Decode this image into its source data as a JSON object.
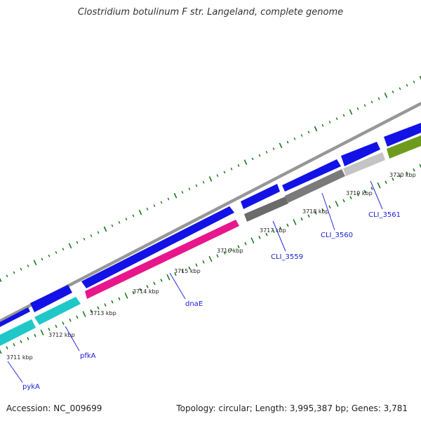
{
  "title": "Clostridium botulinum F str. Langeland, complete genome",
  "footer": {
    "accession": "Accession: NC_009699",
    "summary": "Topology: circular; Length: 3,995,387 bp; Genes: 3,781"
  },
  "colors": {
    "backbone": "#8c8c8c",
    "outer_track_features": "#1212e6",
    "tick": "#117711",
    "dnaE": "#e8168c",
    "pfkA_pykA": "#1fc8c8",
    "CLI_3559": "#6b6b6b",
    "CLI_3560": "#7a7a7a",
    "CLI_3561": "#c4c4c4",
    "next_feature": "#6e9a1e",
    "label_text": "#1a1ad6"
  },
  "kbp_labels": [
    "3711 kbp",
    "3712 kbp",
    "3713 kbp",
    "3714 kbp",
    "3715 kbp",
    "3716 kbp",
    "3717 kbp",
    "3718 kbp",
    "3719 kbp",
    "3720 kbp"
  ],
  "gene_labels": [
    "pykA",
    "pfkA",
    "dnaE",
    "CLI_3559",
    "CLI_3560",
    "CLI_3561"
  ]
}
